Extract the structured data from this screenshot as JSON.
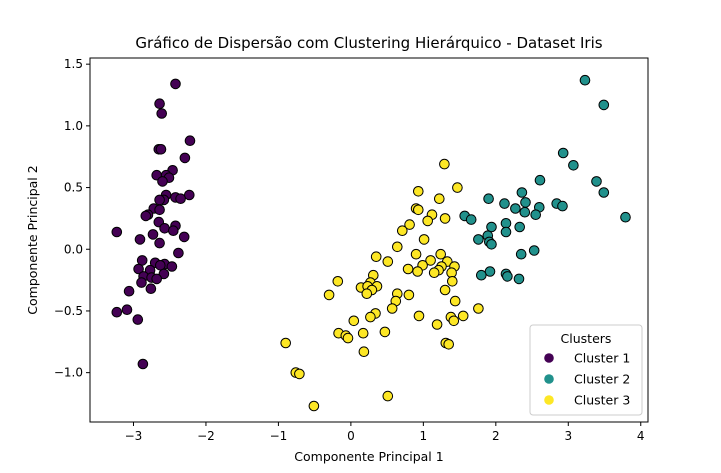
{
  "chart_data": {
    "type": "scatter",
    "title": "Gráfico de Dispersão com Clustering Hierárquico - Dataset Iris",
    "xlabel": "Componente Principal 1",
    "ylabel": "Componente Principal 2",
    "xlim": [
      -3.6,
      4.1
    ],
    "ylim": [
      -1.4,
      1.55
    ],
    "xticks": [
      -3,
      -2,
      -1,
      0,
      1,
      2,
      3,
      4
    ],
    "yticks": [
      -1.0,
      -0.5,
      0.0,
      0.5,
      1.0,
      1.5
    ],
    "xtick_labels": [
      "−3",
      "−2",
      "−1",
      "0",
      "1",
      "2",
      "3",
      "4"
    ],
    "ytick_labels": [
      "−1.0",
      "−0.5",
      "0.0",
      "0.5",
      "1.0",
      "1.5"
    ],
    "grid": false,
    "legend": {
      "title": "Clusters",
      "placement": "lower-right",
      "entries": [
        "Cluster 1",
        "Cluster 2",
        "Cluster 3"
      ]
    },
    "series": [
      {
        "name": "Cluster 1",
        "color": "#440154",
        "points": [
          [
            -2.42,
            1.34
          ],
          [
            -2.64,
            1.18
          ],
          [
            -2.61,
            1.1
          ],
          [
            -2.22,
            0.88
          ],
          [
            -2.65,
            0.81
          ],
          [
            -2.62,
            0.81
          ],
          [
            -2.29,
            0.74
          ],
          [
            -2.46,
            0.64
          ],
          [
            -2.68,
            0.6
          ],
          [
            -2.55,
            0.6
          ],
          [
            -2.51,
            0.58
          ],
          [
            -2.6,
            0.55
          ],
          [
            -2.23,
            0.44
          ],
          [
            -2.55,
            0.44
          ],
          [
            -2.42,
            0.42
          ],
          [
            -2.35,
            0.41
          ],
          [
            -2.58,
            0.4
          ],
          [
            -2.64,
            0.4
          ],
          [
            -2.72,
            0.33
          ],
          [
            -2.64,
            0.32
          ],
          [
            -2.8,
            0.28
          ],
          [
            -2.83,
            0.27
          ],
          [
            -2.65,
            0.22
          ],
          [
            -2.42,
            0.19
          ],
          [
            -2.57,
            0.17
          ],
          [
            -2.45,
            0.15
          ],
          [
            -2.73,
            0.12
          ],
          [
            -2.3,
            0.1
          ],
          [
            -3.23,
            0.14
          ],
          [
            -2.91,
            0.08
          ],
          [
            -2.64,
            0.05
          ],
          [
            -2.38,
            -0.03
          ],
          [
            -2.7,
            -0.11
          ],
          [
            -2.88,
            -0.09
          ],
          [
            -2.57,
            -0.12
          ],
          [
            -2.63,
            -0.13
          ],
          [
            -2.47,
            -0.14
          ],
          [
            -2.93,
            -0.16
          ],
          [
            -2.77,
            -0.17
          ],
          [
            -2.58,
            -0.2
          ],
          [
            -2.86,
            -0.22
          ],
          [
            -2.75,
            -0.23
          ],
          [
            -2.68,
            -0.24
          ],
          [
            -2.89,
            -0.27
          ],
          [
            -2.76,
            -0.32
          ],
          [
            -3.06,
            -0.34
          ],
          [
            -3.09,
            -0.49
          ],
          [
            -2.94,
            -0.57
          ],
          [
            -3.23,
            -0.51
          ],
          [
            -2.87,
            -0.93
          ]
        ]
      },
      {
        "name": "Cluster 2",
        "color": "#21918c",
        "points": [
          [
            3.23,
            1.37
          ],
          [
            3.49,
            1.17
          ],
          [
            2.93,
            0.78
          ],
          [
            3.07,
            0.68
          ],
          [
            2.61,
            0.56
          ],
          [
            3.39,
            0.55
          ],
          [
            3.49,
            0.46
          ],
          [
            2.36,
            0.46
          ],
          [
            1.9,
            0.41
          ],
          [
            2.12,
            0.37
          ],
          [
            2.41,
            0.38
          ],
          [
            2.84,
            0.37
          ],
          [
            2.92,
            0.35
          ],
          [
            2.6,
            0.34
          ],
          [
            2.27,
            0.33
          ],
          [
            2.4,
            0.3
          ],
          [
            2.55,
            0.28
          ],
          [
            1.57,
            0.27
          ],
          [
            1.66,
            0.24
          ],
          [
            3.79,
            0.26
          ],
          [
            2.14,
            0.21
          ],
          [
            2.33,
            0.18
          ],
          [
            1.94,
            0.18
          ],
          [
            2.14,
            0.14
          ],
          [
            1.89,
            0.11
          ],
          [
            1.76,
            0.08
          ],
          [
            1.91,
            0.06
          ],
          [
            1.94,
            0.04
          ],
          [
            2.53,
            -0.01
          ],
          [
            2.35,
            -0.04
          ],
          [
            1.92,
            -0.18
          ],
          [
            1.8,
            -0.21
          ],
          [
            2.14,
            -0.2
          ],
          [
            2.16,
            -0.22
          ],
          [
            2.32,
            -0.24
          ]
        ]
      },
      {
        "name": "Cluster 3",
        "color": "#fde725",
        "points": [
          [
            1.29,
            0.69
          ],
          [
            1.47,
            0.5
          ],
          [
            0.93,
            0.47
          ],
          [
            1.22,
            0.41
          ],
          [
            0.9,
            0.33
          ],
          [
            0.93,
            0.32
          ],
          [
            1.12,
            0.28
          ],
          [
            1.3,
            0.25
          ],
          [
            1.06,
            0.23
          ],
          [
            0.81,
            0.2
          ],
          [
            0.71,
            0.15
          ],
          [
            1.01,
            0.08
          ],
          [
            0.64,
            0.02
          ],
          [
            0.9,
            -0.04
          ],
          [
            1.24,
            -0.04
          ],
          [
            0.35,
            -0.06
          ],
          [
            0.51,
            -0.1
          ],
          [
            1.1,
            -0.09
          ],
          [
            1.33,
            -0.1
          ],
          [
            1.43,
            -0.14
          ],
          [
            1.25,
            -0.14
          ],
          [
            0.99,
            -0.13
          ],
          [
            0.79,
            -0.16
          ],
          [
            0.92,
            -0.18
          ],
          [
            1.21,
            -0.17
          ],
          [
            1.39,
            -0.19
          ],
          [
            1.4,
            -0.26
          ],
          [
            1.15,
            -0.19
          ],
          [
            1.3,
            -0.33
          ],
          [
            0.31,
            -0.21
          ],
          [
            0.27,
            -0.27
          ],
          [
            -0.18,
            -0.26
          ],
          [
            0.14,
            -0.31
          ],
          [
            0.23,
            -0.3
          ],
          [
            0.36,
            -0.3
          ],
          [
            0.29,
            -0.33
          ],
          [
            0.64,
            -0.36
          ],
          [
            0.22,
            -0.36
          ],
          [
            -0.3,
            -0.37
          ],
          [
            0.8,
            -0.37
          ],
          [
            0.62,
            -0.42
          ],
          [
            1.44,
            -0.42
          ],
          [
            0.57,
            -0.48
          ],
          [
            1.38,
            -0.55
          ],
          [
            1.76,
            -0.48
          ],
          [
            0.34,
            -0.52
          ],
          [
            0.27,
            -0.55
          ],
          [
            0.94,
            -0.54
          ],
          [
            1.55,
            -0.54
          ],
          [
            0.04,
            -0.58
          ],
          [
            1.19,
            -0.61
          ],
          [
            1.42,
            -0.58
          ],
          [
            0.17,
            -0.68
          ],
          [
            0.47,
            -0.67
          ],
          [
            -0.17,
            -0.68
          ],
          [
            -0.07,
            -0.7
          ],
          [
            -0.04,
            -0.72
          ],
          [
            -0.9,
            -0.76
          ],
          [
            1.31,
            -0.76
          ],
          [
            1.35,
            -0.77
          ],
          [
            0.18,
            -0.83
          ],
          [
            -0.76,
            -1.0
          ],
          [
            -0.71,
            -1.01
          ],
          [
            0.51,
            -1.19
          ],
          [
            -0.51,
            -1.27
          ]
        ]
      }
    ]
  }
}
